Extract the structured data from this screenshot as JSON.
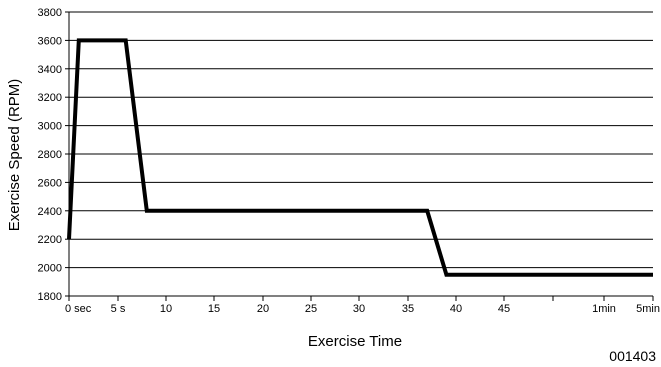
{
  "chart_data": {
    "type": "line",
    "title": "",
    "xlabel": "Exercise Time",
    "ylabel": "Exercise Speed (RPM)",
    "figure_code": "001403",
    "grid": true,
    "legend": "none",
    "ylim": [
      1800,
      3800
    ],
    "y_ticks": [
      "1800",
      "2000",
      "2200",
      "2400",
      "2600",
      "2800",
      "3000",
      "3200",
      "3400",
      "3600",
      "3800"
    ],
    "x_ticks": [
      "0 sec",
      "5 s",
      "10",
      "15",
      "20",
      "25",
      "30",
      "35",
      "40",
      "45",
      "",
      "1min",
      "5min"
    ],
    "series": [
      {
        "line_color": "#000000",
        "x": [
          "0 sec",
          "1 s",
          "5.8 s",
          "8 s",
          "37 s",
          "39 s",
          "5min"
        ],
        "y": [
          2200,
          3600,
          3600,
          2400,
          2400,
          1950,
          1950
        ]
      }
    ]
  }
}
